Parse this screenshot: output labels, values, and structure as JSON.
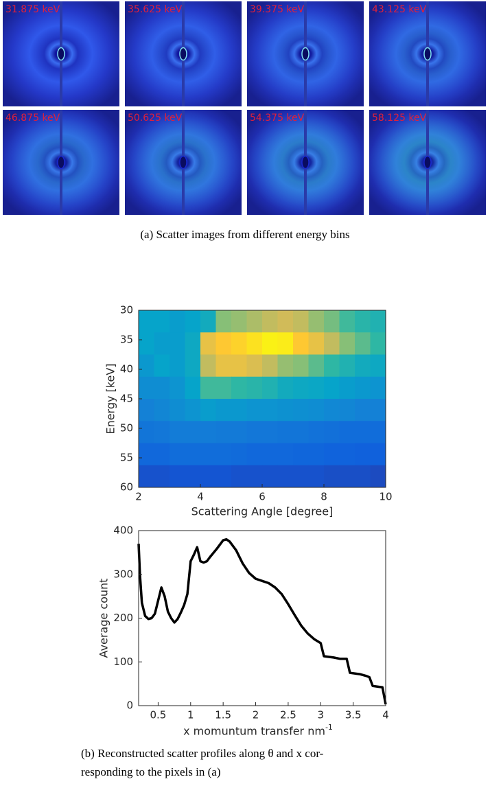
{
  "panel_a": {
    "labels": [
      "31.875 keV",
      "35.625 keV",
      "39.375 keV",
      "43.125 keV",
      "46.875 keV",
      "50.625 keV",
      "54.375 keV",
      "58.125 keV"
    ],
    "caption": "(a) Scatter images from different energy bins"
  },
  "chart_data": [
    {
      "type": "heatmap",
      "xlabel": "Scattering Angle [degree]",
      "ylabel": "Energy [keV]",
      "xbins": [
        2,
        2.5,
        3,
        3.5,
        4,
        4.5,
        5,
        5.5,
        6,
        6.5,
        7,
        7.5,
        8,
        8.5,
        9,
        9.5,
        10
      ],
      "ybins": [
        30,
        33.75,
        37.5,
        41.25,
        45,
        48.75,
        52.5,
        56.25,
        60
      ],
      "values": [
        [
          0.45,
          0.45,
          0.42,
          0.45,
          0.5,
          0.7,
          0.72,
          0.75,
          0.78,
          0.8,
          0.78,
          0.72,
          0.68,
          0.62,
          0.58,
          0.55
        ],
        [
          0.45,
          0.42,
          0.42,
          0.48,
          0.85,
          0.9,
          0.92,
          0.95,
          0.98,
          0.97,
          0.9,
          0.85,
          0.78,
          0.7,
          0.65,
          0.6
        ],
        [
          0.4,
          0.45,
          0.42,
          0.48,
          0.78,
          0.85,
          0.85,
          0.82,
          0.78,
          0.72,
          0.7,
          0.65,
          0.6,
          0.55,
          0.5,
          0.48
        ],
        [
          0.35,
          0.35,
          0.38,
          0.45,
          0.62,
          0.62,
          0.6,
          0.58,
          0.55,
          0.5,
          0.48,
          0.47,
          0.45,
          0.42,
          0.4,
          0.38
        ],
        [
          0.3,
          0.32,
          0.35,
          0.38,
          0.42,
          0.4,
          0.4,
          0.38,
          0.38,
          0.37,
          0.36,
          0.35,
          0.33,
          0.32,
          0.3,
          0.3
        ],
        [
          0.25,
          0.26,
          0.28,
          0.28,
          0.28,
          0.27,
          0.27,
          0.26,
          0.26,
          0.25,
          0.25,
          0.24,
          0.23,
          0.22,
          0.22,
          0.22
        ],
        [
          0.2,
          0.2,
          0.22,
          0.22,
          0.22,
          0.22,
          0.21,
          0.2,
          0.2,
          0.2,
          0.19,
          0.19,
          0.18,
          0.18,
          0.17,
          0.17
        ],
        [
          0.12,
          0.12,
          0.13,
          0.13,
          0.13,
          0.13,
          0.12,
          0.12,
          0.12,
          0.12,
          0.12,
          0.12,
          0.11,
          0.11,
          0.11,
          0.1
        ]
      ],
      "xlim": [
        2,
        10
      ],
      "ylim": [
        30,
        60
      ],
      "xticks": [
        2,
        4,
        6,
        8,
        10
      ],
      "yticks": [
        30,
        35,
        40,
        45,
        50,
        55,
        60
      ]
    },
    {
      "type": "line",
      "xlabel": "x momuntum transfer nm",
      "xlabel_sup": "-1",
      "ylabel": "Average count",
      "color": "#000000",
      "x": [
        0.2,
        0.22,
        0.25,
        0.3,
        0.35,
        0.4,
        0.45,
        0.5,
        0.55,
        0.6,
        0.65,
        0.7,
        0.75,
        0.8,
        0.85,
        0.9,
        0.95,
        1.0,
        1.05,
        1.1,
        1.15,
        1.2,
        1.25,
        1.3,
        1.4,
        1.5,
        1.55,
        1.6,
        1.7,
        1.8,
        1.9,
        2.0,
        2.1,
        2.2,
        2.3,
        2.4,
        2.5,
        2.6,
        2.7,
        2.8,
        2.9,
        3.0,
        3.05,
        3.2,
        3.3,
        3.4,
        3.45,
        3.6,
        3.7,
        3.75,
        3.8,
        3.9,
        3.95,
        4.0
      ],
      "values": [
        370,
        300,
        235,
        205,
        198,
        200,
        210,
        240,
        270,
        250,
        215,
        200,
        190,
        198,
        213,
        230,
        255,
        330,
        345,
        362,
        330,
        327,
        330,
        340,
        358,
        378,
        380,
        375,
        355,
        325,
        303,
        290,
        285,
        280,
        270,
        255,
        232,
        207,
        183,
        165,
        152,
        143,
        113,
        110,
        107,
        107,
        75,
        72,
        68,
        65,
        45,
        43,
        42,
        3
      ],
      "xlim": [
        0.2,
        4
      ],
      "ylim": [
        0,
        400
      ],
      "xticks": [
        0.5,
        1,
        1.5,
        2,
        2.5,
        3,
        3.5,
        4
      ],
      "yticks": [
        0,
        100,
        200,
        300,
        400
      ]
    }
  ],
  "caption_b": [
    "(b) Reconstructed scatter profiles along θ and x cor-",
    "responding to the pixels in (a)"
  ]
}
